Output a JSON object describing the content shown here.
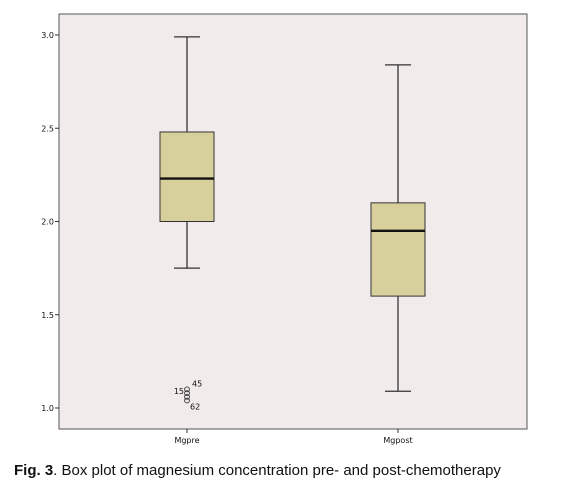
{
  "chart_data": {
    "type": "box",
    "ylim": [
      0.9,
      3.1
    ],
    "y_ticks": [
      1.0,
      1.5,
      2.0,
      2.5,
      3.0
    ],
    "y_tick_labels": [
      "1.0",
      "1.5",
      "2.0",
      "2.5",
      "3.0"
    ],
    "categories": [
      "Mgpre",
      "Mgpost"
    ],
    "boxes": [
      {
        "category": "Mgpre",
        "min": 1.75,
        "q1": 2.0,
        "median": 2.23,
        "q3": 2.48,
        "max": 2.99,
        "outliers": [
          {
            "label": "45",
            "value": 1.1
          },
          {
            "label": "15",
            "value": 1.08
          },
          {
            "label": "",
            "value": 1.06
          },
          {
            "label": "62",
            "value": 1.04
          }
        ]
      },
      {
        "category": "Mgpost",
        "min": 1.09,
        "q1": 1.6,
        "median": 1.95,
        "q3": 2.1,
        "max": 2.84,
        "outliers": []
      }
    ],
    "grid": false,
    "colors": {
      "plot_background": "#f1ebeb",
      "box_fill": "#d8d09c",
      "box_stroke": "#333333"
    }
  },
  "caption": {
    "label": "Fig. 3",
    "text": ". Box plot of magnesium concentration pre- and post-chemotherapy"
  }
}
